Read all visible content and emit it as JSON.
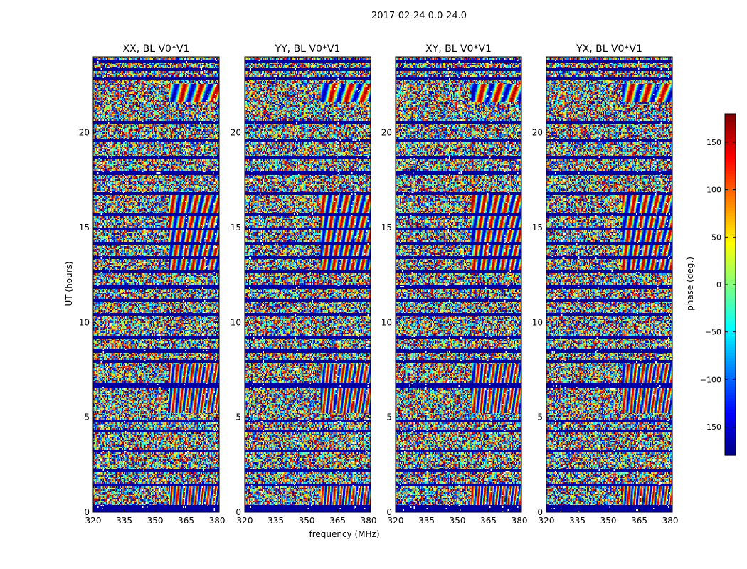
{
  "figure": {
    "suptitle": "2017-02-24 0.0-24.0",
    "xlabel": "frequency (MHz)",
    "ylabel": "UT (hours)",
    "colorbar_label": "phase (deg.)"
  },
  "chart_data": [
    {
      "type": "heatmap",
      "title": "XX, BL V0*V1",
      "xlabel": "frequency (MHz)",
      "ylabel": "UT (hours)",
      "xlim": [
        320,
        381
      ],
      "ylim": [
        0,
        24
      ],
      "xticks": [
        320,
        335,
        350,
        365,
        380
      ],
      "yticks": [
        0,
        5,
        10,
        15,
        20
      ],
      "colormap": "jet",
      "clim": [
        -180,
        180
      ],
      "value_label": "phase (deg.)"
    },
    {
      "type": "heatmap",
      "title": "YY, BL V0*V1",
      "xlabel": "frequency (MHz)",
      "ylabel": "UT (hours)",
      "xlim": [
        320,
        381
      ],
      "ylim": [
        0,
        24
      ],
      "xticks": [
        320,
        335,
        350,
        365,
        380
      ],
      "yticks": [
        0,
        5,
        10,
        15,
        20
      ],
      "colormap": "jet",
      "clim": [
        -180,
        180
      ],
      "value_label": "phase (deg.)"
    },
    {
      "type": "heatmap",
      "title": "XY, BL V0*V1",
      "xlabel": "frequency (MHz)",
      "ylabel": "UT (hours)",
      "xlim": [
        320,
        381
      ],
      "ylim": [
        0,
        24
      ],
      "xticks": [
        320,
        335,
        350,
        365,
        380
      ],
      "yticks": [
        0,
        5,
        10,
        15,
        20
      ],
      "colormap": "jet",
      "clim": [
        -180,
        180
      ],
      "value_label": "phase (deg.)"
    },
    {
      "type": "heatmap",
      "title": "YX, BL V0*V1",
      "xlabel": "frequency (MHz)",
      "ylabel": "UT (hours)",
      "xlim": [
        320,
        381
      ],
      "ylim": [
        0,
        24
      ],
      "xticks": [
        320,
        335,
        350,
        365,
        380
      ],
      "yticks": [
        0,
        5,
        10,
        15,
        20
      ],
      "colormap": "jet",
      "clim": [
        -180,
        180
      ],
      "value_label": "phase (deg.)"
    }
  ],
  "colorbar": {
    "ticks": [
      150,
      100,
      50,
      0,
      -50,
      -100,
      -150
    ],
    "tick_labels": [
      "150",
      "100",
      "50",
      "0",
      "−50",
      "−100",
      "−150"
    ],
    "clim": [
      -180,
      180
    ],
    "colormap": "jet"
  }
}
